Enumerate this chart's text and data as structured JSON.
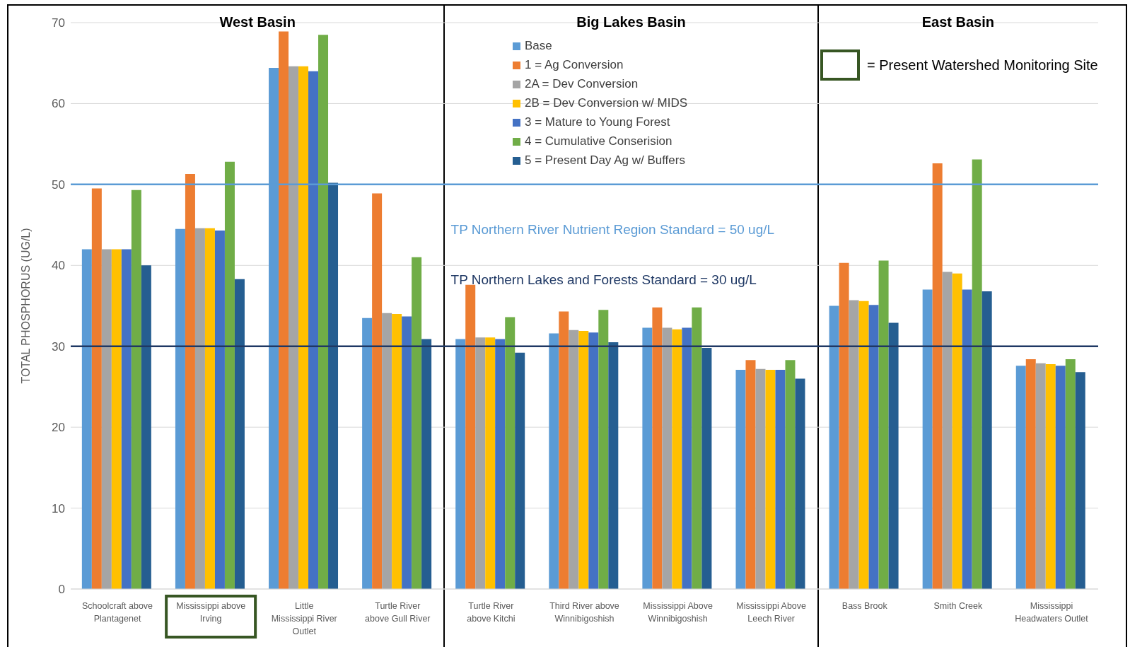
{
  "chart_data": {
    "type": "bar",
    "categories": [
      "Schoolcraft above Plantagenet",
      "Mississippi above Irving",
      "Little Mississippi River Outlet",
      "Turtle River above Gull River",
      "Turtle River above Kitchi",
      "Third River above Winnibigoshish",
      "Mississippi Above Winnibigoshish",
      "Mississippi Above Leech River",
      "Bass Brook",
      "Smith Creek",
      "Mississippi Headwaters Outlet"
    ],
    "series": [
      {
        "name": "Base",
        "color": "#5b9bd5",
        "values": [
          42,
          44.5,
          64.4,
          33.5,
          30.9,
          31.6,
          32.3,
          27.1,
          35,
          37,
          27.6
        ]
      },
      {
        "name": "1 = Ag Conversion",
        "color": "#ed7d31",
        "values": [
          49.5,
          51.3,
          68.9,
          48.9,
          37.6,
          34.3,
          34.8,
          28.3,
          40.3,
          52.6,
          28.4
        ]
      },
      {
        "name": "2A = Dev Conversion",
        "color": "#a5a5a5",
        "values": [
          42,
          44.6,
          64.6,
          34.1,
          31.1,
          32,
          32.3,
          27.2,
          35.7,
          39.2,
          27.9
        ]
      },
      {
        "name": "2B = Dev Conversion w/ MIDS",
        "color": "#ffc000",
        "values": [
          42,
          44.6,
          64.6,
          34,
          31.1,
          31.9,
          32.1,
          27.1,
          35.6,
          39,
          27.8
        ]
      },
      {
        "name": "3 = Mature to Young Forest",
        "color": "#4472c4",
        "values": [
          42,
          44.3,
          64,
          33.7,
          30.9,
          31.7,
          32.3,
          27.1,
          35.1,
          37,
          27.6
        ]
      },
      {
        "name": "4 = Cumulative Conserision",
        "color": "#70ad47",
        "values": [
          49.3,
          52.8,
          68.5,
          41,
          33.6,
          34.5,
          34.8,
          28.3,
          40.6,
          53.1,
          28.4
        ]
      },
      {
        "name": "5 = Present Day Ag w/ Buffers",
        "color": "#255e91",
        "values": [
          40,
          38.3,
          50.2,
          30.9,
          29.2,
          30.5,
          29.8,
          26,
          32.9,
          36.8,
          26.8
        ]
      }
    ],
    "ylabel": "TOTAL PHOSPHORUS (UG/L)",
    "ylim": [
      0,
      70
    ],
    "yticks": [
      0,
      10,
      20,
      30,
      40,
      50,
      60,
      70
    ],
    "grid": "y",
    "legend": "top",
    "ref_lines": [
      {
        "axis": "y",
        "value": 50,
        "label": "TP Northern River Nutrient Region Standard = 50 ug/L",
        "color": "#5b9bd5"
      },
      {
        "axis": "y",
        "value": 30,
        "label": "TP Northern Lakes and Forests Standard = 30 ug/L",
        "color": "#1f3864"
      }
    ],
    "annotations": [
      "West Basin",
      "Big Lakes Basin",
      "East Basin",
      "= Present Watershed Monitoring Site"
    ]
  }
}
